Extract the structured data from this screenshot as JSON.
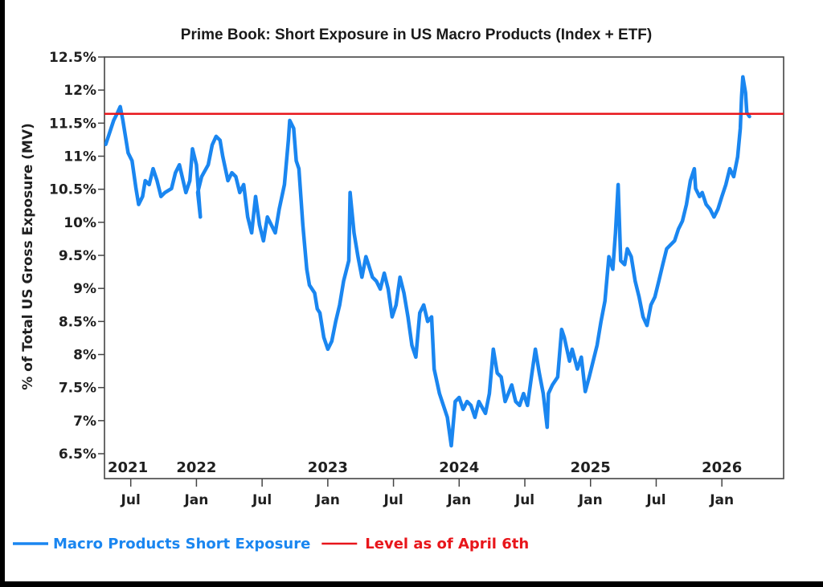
{
  "chart_data": {
    "type": "line",
    "title": "Prime Book: Short Exposure in US Macro Products (Index + ETF)",
    "xlabel": "",
    "ylabel": "% of Total US Gross Exposure (MV)",
    "ylim": [
      6.5,
      12.5
    ],
    "xlim": [
      2021.3,
      2026.47
    ],
    "y_ticks": [
      12.5,
      12,
      11.5,
      11,
      10.5,
      10,
      9.5,
      9,
      8.5,
      8,
      7.5,
      7,
      6.5
    ],
    "y_tick_labels": [
      "12.5%",
      "12%",
      "11.5%",
      "11%",
      "10.5%",
      "10%",
      "9.5%",
      "9%",
      "8.5%",
      "8%",
      "7.5%",
      "7%",
      "6.5%"
    ],
    "x_ticks": [
      {
        "x": 2021.5,
        "label": "Jul"
      },
      {
        "x": 2022.0,
        "label": "Jan"
      },
      {
        "x": 2022.5,
        "label": "Jul"
      },
      {
        "x": 2023.0,
        "label": "Jan"
      },
      {
        "x": 2023.5,
        "label": "Jul"
      },
      {
        "x": 2024.0,
        "label": "Jan"
      },
      {
        "x": 2024.5,
        "label": "Jul"
      },
      {
        "x": 2025.0,
        "label": "Jan"
      },
      {
        "x": 2025.5,
        "label": "Jul"
      },
      {
        "x": 2026.0,
        "label": "Jan"
      }
    ],
    "year_labels": [
      {
        "x": 2021.3,
        "label": "2021"
      },
      {
        "x": 2022.0,
        "label": "2022"
      },
      {
        "x": 2023.0,
        "label": "2023"
      },
      {
        "x": 2024.0,
        "label": "2024"
      },
      {
        "x": 2025.0,
        "label": "2025"
      },
      {
        "x": 2026.0,
        "label": "2026"
      }
    ],
    "grid": false,
    "legend_position": "bottom-left",
    "series": [
      {
        "name": "Macro Products Short Exposure",
        "color": "#1a86f0",
        "points": [
          [
            2021.31,
            11.18
          ],
          [
            2021.34,
            11.36
          ],
          [
            2021.37,
            11.54
          ],
          [
            2021.4,
            11.66
          ],
          [
            2021.42,
            11.75
          ],
          [
            2021.44,
            11.54
          ],
          [
            2021.48,
            11.05
          ],
          [
            2021.51,
            10.93
          ],
          [
            2021.54,
            10.51
          ],
          [
            2021.56,
            10.27
          ],
          [
            2021.59,
            10.39
          ],
          [
            2021.61,
            10.63
          ],
          [
            2021.64,
            10.57
          ],
          [
            2021.67,
            10.81
          ],
          [
            2021.7,
            10.63
          ],
          [
            2021.73,
            10.39
          ],
          [
            2021.76,
            10.45
          ],
          [
            2021.81,
            10.51
          ],
          [
            2021.84,
            10.75
          ],
          [
            2021.87,
            10.87
          ],
          [
            2021.92,
            10.45
          ],
          [
            2021.95,
            10.63
          ],
          [
            2021.97,
            11.11
          ],
          [
            2022.0,
            10.87
          ],
          [
            2022.03,
            10.08
          ],
          [
            2022.01,
            10.45
          ],
          [
            2022.04,
            10.69
          ],
          [
            2022.09,
            10.87
          ],
          [
            2022.12,
            11.17
          ],
          [
            2022.15,
            11.3
          ],
          [
            2022.18,
            11.24
          ],
          [
            2022.2,
            11.0
          ],
          [
            2022.24,
            10.63
          ],
          [
            2022.27,
            10.75
          ],
          [
            2022.3,
            10.69
          ],
          [
            2022.33,
            10.45
          ],
          [
            2022.36,
            10.57
          ],
          [
            2022.39,
            10.08
          ],
          [
            2022.42,
            9.84
          ],
          [
            2022.45,
            10.39
          ],
          [
            2022.48,
            9.96
          ],
          [
            2022.51,
            9.72
          ],
          [
            2022.54,
            10.08
          ],
          [
            2022.57,
            9.96
          ],
          [
            2022.6,
            9.84
          ],
          [
            2022.63,
            10.2
          ],
          [
            2022.67,
            10.57
          ],
          [
            2022.7,
            11.24
          ],
          [
            2022.71,
            11.54
          ],
          [
            2022.74,
            11.42
          ],
          [
            2022.76,
            10.93
          ],
          [
            2022.78,
            10.81
          ],
          [
            2022.81,
            9.96
          ],
          [
            2022.84,
            9.29
          ],
          [
            2022.86,
            9.05
          ],
          [
            2022.9,
            8.93
          ],
          [
            2022.92,
            8.69
          ],
          [
            2022.94,
            8.63
          ],
          [
            2022.97,
            8.26
          ],
          [
            2023.0,
            8.08
          ],
          [
            2023.03,
            8.2
          ],
          [
            2023.06,
            8.5
          ],
          [
            2023.09,
            8.75
          ],
          [
            2023.12,
            9.11
          ],
          [
            2023.16,
            9.42
          ],
          [
            2023.17,
            10.45
          ],
          [
            2023.2,
            9.84
          ],
          [
            2023.23,
            9.48
          ],
          [
            2023.26,
            9.17
          ],
          [
            2023.29,
            9.48
          ],
          [
            2023.31,
            9.36
          ],
          [
            2023.34,
            9.17
          ],
          [
            2023.37,
            9.11
          ],
          [
            2023.4,
            8.99
          ],
          [
            2023.43,
            9.23
          ],
          [
            2023.46,
            8.99
          ],
          [
            2023.49,
            8.57
          ],
          [
            2023.52,
            8.75
          ],
          [
            2023.55,
            9.17
          ],
          [
            2023.58,
            8.93
          ],
          [
            2023.61,
            8.57
          ],
          [
            2023.64,
            8.14
          ],
          [
            2023.67,
            7.96
          ],
          [
            2023.7,
            8.63
          ],
          [
            2023.73,
            8.75
          ],
          [
            2023.76,
            8.5
          ],
          [
            2023.79,
            8.57
          ],
          [
            2023.81,
            7.78
          ],
          [
            2023.85,
            7.41
          ],
          [
            2023.88,
            7.23
          ],
          [
            2023.91,
            7.05
          ],
          [
            2023.94,
            6.62
          ],
          [
            2023.97,
            7.29
          ],
          [
            2024.0,
            7.35
          ],
          [
            2024.03,
            7.17
          ],
          [
            2024.06,
            7.29
          ],
          [
            2024.09,
            7.23
          ],
          [
            2024.12,
            7.05
          ],
          [
            2024.15,
            7.29
          ],
          [
            2024.2,
            7.11
          ],
          [
            2024.23,
            7.41
          ],
          [
            2024.26,
            8.08
          ],
          [
            2024.29,
            7.72
          ],
          [
            2024.32,
            7.66
          ],
          [
            2024.35,
            7.29
          ],
          [
            2024.4,
            7.54
          ],
          [
            2024.43,
            7.29
          ],
          [
            2024.46,
            7.23
          ],
          [
            2024.49,
            7.41
          ],
          [
            2024.52,
            7.23
          ],
          [
            2024.55,
            7.66
          ],
          [
            2024.58,
            8.08
          ],
          [
            2024.61,
            7.72
          ],
          [
            2024.64,
            7.41
          ],
          [
            2024.67,
            6.9
          ],
          [
            2024.68,
            7.41
          ],
          [
            2024.71,
            7.54
          ],
          [
            2024.75,
            7.66
          ],
          [
            2024.78,
            8.38
          ],
          [
            2024.8,
            8.26
          ],
          [
            2024.84,
            7.9
          ],
          [
            2024.86,
            8.08
          ],
          [
            2024.9,
            7.78
          ],
          [
            2024.93,
            7.96
          ],
          [
            2024.96,
            7.44
          ],
          [
            2024.99,
            7.66
          ],
          [
            2025.02,
            7.9
          ],
          [
            2025.05,
            8.14
          ],
          [
            2025.08,
            8.5
          ],
          [
            2025.11,
            8.81
          ],
          [
            2025.14,
            9.48
          ],
          [
            2025.17,
            9.29
          ],
          [
            2025.19,
            9.84
          ],
          [
            2025.21,
            10.57
          ],
          [
            2025.23,
            9.42
          ],
          [
            2025.26,
            9.36
          ],
          [
            2025.28,
            9.6
          ],
          [
            2025.31,
            9.48
          ],
          [
            2025.34,
            9.11
          ],
          [
            2025.37,
            8.87
          ],
          [
            2025.4,
            8.57
          ],
          [
            2025.43,
            8.44
          ],
          [
            2025.46,
            8.75
          ],
          [
            2025.49,
            8.87
          ],
          [
            2025.52,
            9.11
          ],
          [
            2025.55,
            9.36
          ],
          [
            2025.58,
            9.6
          ],
          [
            2025.61,
            9.66
          ],
          [
            2025.64,
            9.72
          ],
          [
            2025.67,
            9.9
          ],
          [
            2025.7,
            10.02
          ],
          [
            2025.73,
            10.27
          ],
          [
            2025.76,
            10.63
          ],
          [
            2025.79,
            10.81
          ],
          [
            2025.8,
            10.51
          ],
          [
            2025.83,
            10.39
          ],
          [
            2025.85,
            10.45
          ],
          [
            2025.88,
            10.27
          ],
          [
            2025.91,
            10.2
          ],
          [
            2025.94,
            10.08
          ],
          [
            2025.97,
            10.2
          ],
          [
            2026.0,
            10.39
          ],
          [
            2026.03,
            10.57
          ],
          [
            2026.06,
            10.81
          ],
          [
            2026.09,
            10.69
          ],
          [
            2026.12,
            10.99
          ],
          [
            2026.14,
            11.42
          ],
          [
            2026.15,
            11.9
          ],
          [
            2026.16,
            12.2
          ],
          [
            2026.18,
            11.96
          ],
          [
            2026.19,
            11.66
          ],
          [
            2026.21,
            11.6
          ]
        ]
      },
      {
        "name": "Level as of April 6th",
        "color": "#e8161b",
        "value": 11.64
      }
    ]
  },
  "legend": {
    "items": [
      {
        "label": "Macro Products Short Exposure",
        "color": "#1a86f0"
      },
      {
        "label": "Level as of April 6th",
        "color": "#e8161b"
      }
    ]
  }
}
